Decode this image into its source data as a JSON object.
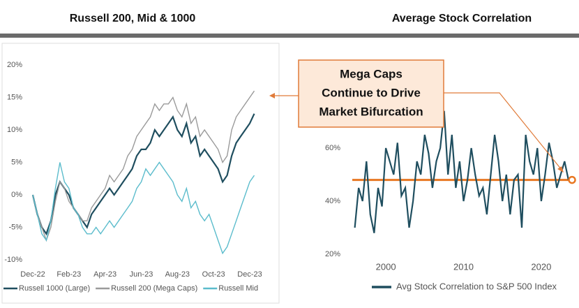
{
  "chart_data": [
    {
      "type": "line",
      "title": "Russell 200, Mid & 1000",
      "categories": [
        "Dec-22",
        null,
        null,
        null,
        null,
        null,
        null,
        null,
        "Feb-23",
        null,
        null,
        null,
        null,
        null,
        null,
        null,
        "Apr-23",
        null,
        null,
        null,
        null,
        null,
        null,
        null,
        "Jun-23",
        null,
        null,
        null,
        null,
        null,
        null,
        null,
        "Aug-23",
        null,
        null,
        null,
        null,
        null,
        null,
        null,
        "Oct-23",
        null,
        null,
        null,
        null,
        null,
        null,
        null,
        "Dec-23",
        null
      ],
      "series": [
        {
          "name": "Russell 1000 (Large)",
          "color": "#1f4e5f",
          "values": [
            0,
            -3,
            -5,
            -6,
            -4,
            0,
            2,
            1,
            0,
            -2,
            -3,
            -4,
            -5,
            -3,
            -2,
            -1,
            0,
            1,
            0,
            1,
            2,
            3,
            4,
            6,
            7,
            7,
            8,
            10,
            9,
            10,
            11,
            12,
            10,
            9,
            11,
            8,
            9,
            6,
            7,
            6,
            5,
            4,
            2,
            3,
            6,
            8,
            9,
            10,
            11,
            12.5
          ]
        },
        {
          "name": "Russell 200 (Mega Caps)",
          "color": "#9a9a9a",
          "values": [
            0,
            -3,
            -5,
            -7,
            -5,
            -1,
            2,
            1,
            -1,
            -2,
            -3,
            -4,
            -4,
            -2,
            -1,
            0,
            1,
            3,
            2,
            3,
            4,
            6,
            7,
            9,
            10,
            11,
            12,
            14,
            13,
            14,
            14,
            15,
            13,
            12,
            14,
            11,
            12,
            9,
            10,
            9,
            8,
            7,
            5,
            6,
            10,
            12,
            13,
            14,
            15,
            16
          ]
        },
        {
          "name": "Russell Mid",
          "color": "#5bbccc",
          "values": [
            0,
            -3,
            -6,
            -7,
            -4,
            1,
            5,
            2,
            1,
            -2,
            -3,
            -5,
            -6,
            -6,
            -5,
            -6,
            -5,
            -4,
            -5,
            -4,
            -3,
            -2,
            -1,
            1,
            2,
            4,
            3,
            4,
            5,
            4,
            3,
            2,
            0,
            -1,
            1,
            -2,
            -1,
            -3,
            -4,
            -3,
            -5,
            -7,
            -9,
            -8,
            -6,
            -4,
            -2,
            0,
            2,
            3
          ]
        }
      ],
      "ylim": [
        -10,
        20
      ],
      "yticks": [
        {
          "value": -10,
          "label": "-10%"
        },
        {
          "value": -5,
          "label": "-5%"
        },
        {
          "value": 0,
          "label": "0%"
        },
        {
          "value": 5,
          "label": "5%"
        },
        {
          "value": 10,
          "label": "10%"
        },
        {
          "value": 15,
          "label": "15%"
        },
        {
          "value": 20,
          "label": "20%"
        }
      ]
    },
    {
      "type": "line",
      "title": "Average Stock Correlation",
      "x": [
        1996,
        1996.5,
        1997,
        1997.5,
        1998,
        1998.5,
        1999,
        1999.5,
        2000,
        2000.5,
        2001,
        2001.5,
        2002,
        2002.5,
        2003,
        2003.5,
        2004,
        2004.5,
        2005,
        2005.5,
        2006,
        2006.5,
        2007,
        2007.5,
        2008,
        2008.5,
        2009,
        2009.5,
        2010,
        2010.5,
        2011,
        2011.5,
        2012,
        2012.5,
        2013,
        2013.5,
        2014,
        2014.5,
        2015,
        2015.5,
        2016,
        2016.5,
        2017,
        2017.5,
        2018,
        2018.5,
        2019,
        2019.5,
        2020,
        2020.5,
        2021,
        2021.5,
        2022,
        2022.5,
        2023,
        2023.5
      ],
      "series": [
        {
          "name": "Avg Stock Correlation to S&P 500 Index",
          "color": "#1f4e5f",
          "values": [
            30,
            45,
            40,
            55,
            35,
            28,
            45,
            38,
            60,
            55,
            50,
            62,
            42,
            45,
            30,
            40,
            55,
            50,
            65,
            58,
            45,
            55,
            60,
            74,
            50,
            65,
            45,
            55,
            40,
            48,
            60,
            50,
            42,
            45,
            35,
            50,
            65,
            55,
            40,
            50,
            35,
            48,
            50,
            30,
            65,
            55,
            50,
            60,
            40,
            50,
            62,
            55,
            45,
            50,
            55,
            48
          ]
        }
      ],
      "xlim": [
        1995.5,
        2024.5
      ],
      "xticks": [
        2000,
        2010,
        2020
      ],
      "ylim": [
        20,
        85
      ],
      "yticks": [
        {
          "value": 20,
          "label": "20%"
        },
        {
          "value": 40,
          "label": "40%"
        },
        {
          "value": 60,
          "label": "60%"
        }
      ],
      "reference_line": {
        "value": 48,
        "color": "#e87722"
      }
    }
  ],
  "annotation": [
    "Mega Caps",
    "Continue to Drive",
    "Market Bifurcation"
  ]
}
